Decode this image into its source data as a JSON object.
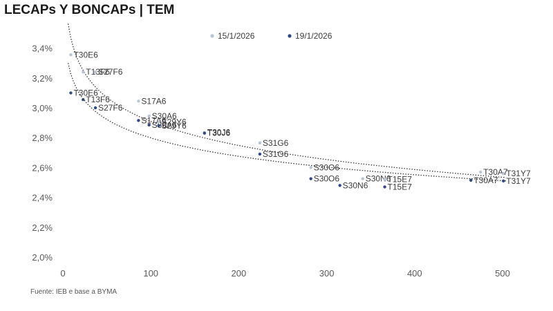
{
  "title": "LECAPs Y BONCAPs | TEM",
  "source": "Fuente: IEB e base a BYMA",
  "chart_data": {
    "type": "scatter",
    "title": "LECAPs Y BONCAPs | TEM",
    "xlim": [
      0,
      540
    ],
    "ylim": [
      2.0,
      3.5
    ],
    "x_ticks": [
      "0",
      "100",
      "200",
      "300",
      "400",
      "500"
    ],
    "y_ticks": [
      "2,0%",
      "2,2%",
      "2,4%",
      "2,6%",
      "2,8%",
      "3,0%",
      "3,2%",
      "3,4%"
    ],
    "grid": false,
    "legend": "top-center",
    "series": [
      {
        "name": "15/1/2026",
        "color": "#b8c4d6",
        "points": [
          {
            "x": 9,
            "y": 3.355,
            "label": "T30E6"
          },
          {
            "x": 23,
            "y": 3.24,
            "label": "T13F6"
          },
          {
            "x": 37,
            "y": 3.24,
            "label": "S27F6"
          },
          {
            "x": 86,
            "y": 3.045,
            "label": "S17A6"
          },
          {
            "x": 98,
            "y": 2.945,
            "label": "S30A6"
          },
          {
            "x": 109,
            "y": 2.905,
            "label": "S29Y6"
          },
          {
            "x": 161,
            "y": 2.835,
            "label": "T30J6"
          },
          {
            "x": 224,
            "y": 2.765,
            "label": "S31G6"
          },
          {
            "x": 282,
            "y": 2.6,
            "label": "S30O6"
          },
          {
            "x": 341,
            "y": 2.525,
            "label": "S30N6"
          },
          {
            "x": 366,
            "y": 2.52,
            "label": "T15E7"
          },
          {
            "x": 475,
            "y": 2.57,
            "label": "T30A7"
          },
          {
            "x": 501,
            "y": 2.56,
            "label": "T31Y7"
          }
        ]
      },
      {
        "name": "19/1/2026",
        "color": "#2e4a86",
        "points": [
          {
            "x": 9,
            "y": 3.1,
            "label": "T30E6"
          },
          {
            "x": 23,
            "y": 3.055,
            "label": "T13F6"
          },
          {
            "x": 37,
            "y": 3.0,
            "label": "S27F6"
          },
          {
            "x": 86,
            "y": 2.915,
            "label": "S17A6"
          },
          {
            "x": 98,
            "y": 2.885,
            "label": "S30A6"
          },
          {
            "x": 109,
            "y": 2.88,
            "label": "S29Y6"
          },
          {
            "x": 161,
            "y": 2.83,
            "label": "T30J6"
          },
          {
            "x": 224,
            "y": 2.69,
            "label": "S31G6"
          },
          {
            "x": 282,
            "y": 2.525,
            "label": "S30O6"
          },
          {
            "x": 315,
            "y": 2.48,
            "label": "S30N6"
          },
          {
            "x": 366,
            "y": 2.47,
            "label": "T15E7"
          },
          {
            "x": 464,
            "y": 2.515,
            "label": "T30A7"
          },
          {
            "x": 501,
            "y": 2.51,
            "label": "T31Y7"
          }
        ]
      }
    ]
  }
}
